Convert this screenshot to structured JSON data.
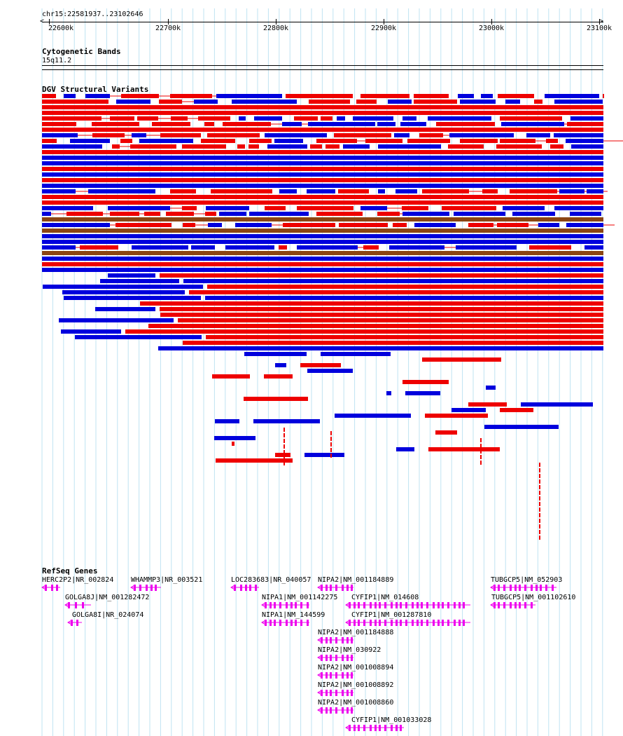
{
  "region": {
    "label": "chr15:22581937..23102646",
    "start": 22581937,
    "end": 23102646
  },
  "ruler": {
    "ticks": [
      "22600k",
      "22700k",
      "22800k",
      "22900k",
      "23000k",
      "23100k"
    ]
  },
  "cytoband": {
    "title": "Cytogenetic Bands",
    "band": "15q11.2"
  },
  "dgv": {
    "title": "DGV Structural Variants",
    "colors": {
      "gain": "#ee0000",
      "loss": "#0000dd",
      "gain_loss": "#8b4513",
      "other": "#000000",
      "connector": "#ee0000"
    }
  },
  "refseq": {
    "title": "RefSeq Genes",
    "color": "#ee00ee",
    "genes": [
      {
        "label": "HERC2P2|NR_002824"
      },
      {
        "label": "WHAMMP3|NR_003521"
      },
      {
        "label": "LOC283683|NR_040057"
      },
      {
        "label": "NIPA2|NM_001184889"
      },
      {
        "label": "TUBGCP5|NM_052903"
      },
      {
        "label": "GOLGA8J|NM_001282472"
      },
      {
        "label": "NIPA1|NM_001142275"
      },
      {
        "label": "CYFIP1|NM_014608"
      },
      {
        "label": "TUBGCP5|NM_001102610"
      },
      {
        "label": "GOLGA8I|NR_024074"
      },
      {
        "label": "NIPA1|NM_144599"
      },
      {
        "label": "CYFIP1|NM_001287810"
      },
      {
        "label": "NIPA2|NM_001184888"
      },
      {
        "label": "NIPA2|NM_030922"
      },
      {
        "label": "NIPA2|NM_001008894"
      },
      {
        "label": "NIPA2|NM_001008892"
      },
      {
        "label": "NIPA2|NM_001008860"
      },
      {
        "label": "CYFIP1|NM_001033028"
      }
    ]
  }
}
